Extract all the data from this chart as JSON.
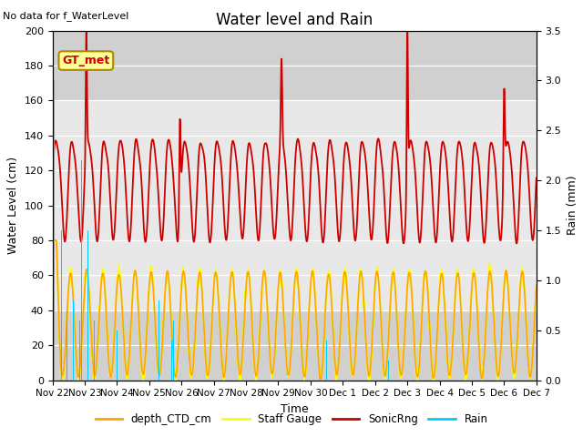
{
  "title": "Water level and Rain",
  "subtitle": "No data for f_WaterLevel",
  "xlabel": "Time",
  "ylabel_left": "Water Level (cm)",
  "ylabel_right": "Rain (mm)",
  "ylim_left": [
    0,
    200
  ],
  "ylim_right": [
    0,
    3.5
  ],
  "yticks_left": [
    0,
    20,
    40,
    60,
    80,
    100,
    120,
    140,
    160,
    180,
    200
  ],
  "yticks_right": [
    0.0,
    0.5,
    1.0,
    1.5,
    2.0,
    2.5,
    3.0,
    3.5
  ],
  "legend_labels": [
    "depth_CTD_cm",
    "Staff Gauge",
    "SonicRng",
    "Rain"
  ],
  "legend_colors": [
    "#FFA500",
    "#FFFF00",
    "#CC0000",
    "#00CCFF"
  ],
  "gt_met_label": "GT_met",
  "gt_met_color": "#CC0000",
  "gt_met_bg": "#FFFF99",
  "bg_color": "#E8E8E8",
  "shaded_top_color": "#DCDCDC",
  "grid_line_color": "#C8C8C8",
  "x_tick_labels": [
    "Nov 22",
    "Nov 23",
    "Nov 24",
    "Nov 25",
    "Nov 26",
    "Nov 27",
    "Nov 28",
    "Nov 29",
    "Nov 30",
    "Dec 1",
    "Dec 2",
    "Dec 3",
    "Dec 4",
    "Dec 5",
    "Dec 6",
    "Dec 7"
  ],
  "n_days": 15
}
